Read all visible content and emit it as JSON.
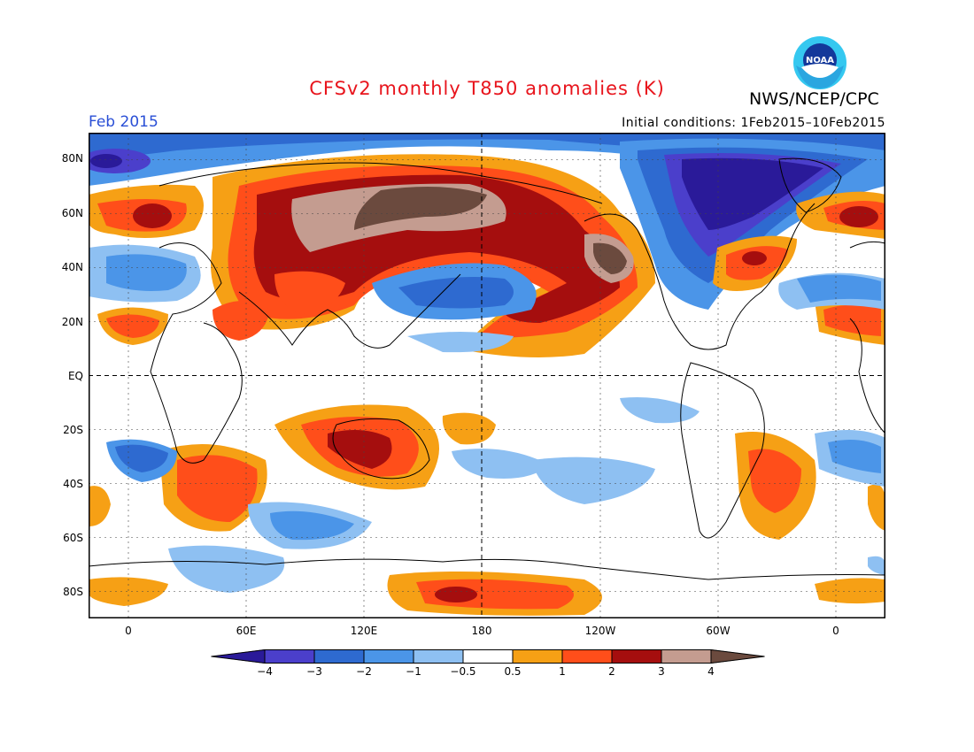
{
  "header": {
    "title": "CFSv2 monthly T850 anomalies (K)",
    "title_color": "#e8141c",
    "agency": "NWS/NCEP/CPC",
    "month": "Feb 2015",
    "month_color": "#2a4fd6",
    "initial_conditions": "Initial conditions: 1Feb2015–10Feb2015",
    "logo": "noaa-logo",
    "logo_text": "NOAA"
  },
  "map": {
    "projection": "cylindrical equidistant",
    "lon_labels": [
      "0",
      "60E",
      "120E",
      "180",
      "120W",
      "60W",
      "0"
    ],
    "lat_labels": [
      "80N",
      "60N",
      "40N",
      "20N",
      "EQ",
      "20S",
      "40S",
      "60S",
      "80S"
    ],
    "grid": true
  },
  "colorbar": {
    "labels": [
      "−4",
      "−3",
      "−2",
      "−1",
      "−0.5",
      "0.5",
      "1",
      "2",
      "3",
      "4"
    ],
    "colors": [
      "#2a1a99",
      "#4b3fcb",
      "#2e6ad0",
      "#4b95e8",
      "#8ec0f2",
      "#ffffff",
      "#f6a015",
      "#ff4e1a",
      "#a50e0e",
      "#c49c90",
      "#6b4a3e"
    ]
  }
}
